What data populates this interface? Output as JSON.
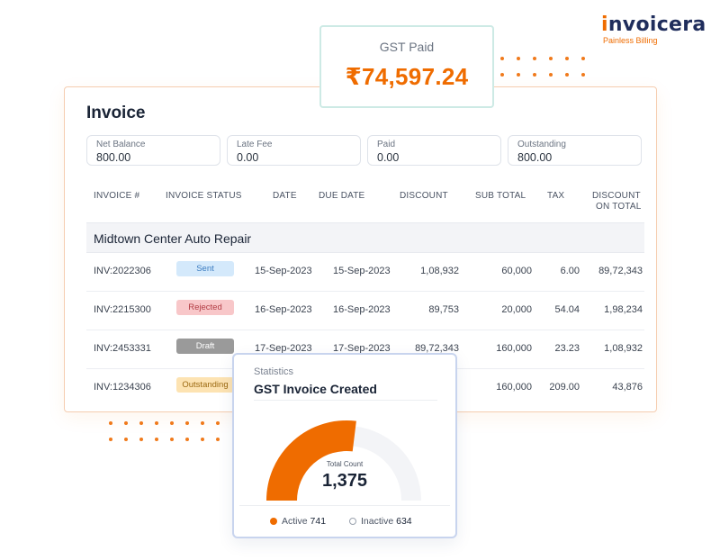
{
  "brand": {
    "name_prefix": "i",
    "name_rest": "nvoicera",
    "tagline": "Painless Billing",
    "accent_color": "#ef6c00",
    "dark_color": "#1f2d5c"
  },
  "gst_paid": {
    "label": "GST Paid",
    "value": "₹74,597.24"
  },
  "invoice": {
    "title": "Invoice",
    "summary": [
      {
        "label": "Net Balance",
        "value": "800.00"
      },
      {
        "label": "Late Fee",
        "value": "0.00"
      },
      {
        "label": "Paid",
        "value": "0.00"
      },
      {
        "label": "Outstanding",
        "value": "800.00"
      }
    ],
    "columns": [
      "INVOICE #",
      "INVOICE STATUS",
      "DATE",
      "DUE DATE",
      "DISCOUNT",
      "SUB TOTAL",
      "TAX",
      "DISCOUNT",
      "ON TOTAL"
    ],
    "group_name": "Midtown Center Auto Repair",
    "rows": [
      {
        "invoice": "INV:2022306",
        "status": "Sent",
        "date": "15-Sep-2023",
        "due": "15-Sep-2023",
        "discount": "1,08,932",
        "subtotal": "60,000",
        "tax": "6.00",
        "discount_total": "89,72,343"
      },
      {
        "invoice": "INV:2215300",
        "status": "Rejected",
        "date": "16-Sep-2023",
        "due": "16-Sep-2023",
        "discount": "89,753",
        "subtotal": "20,000",
        "tax": "54.04",
        "discount_total": "1,98,234"
      },
      {
        "invoice": "INV:2453331",
        "status": "Draft",
        "date": "17-Sep-2023",
        "due": "17-Sep-2023",
        "discount": "89,72,343",
        "subtotal": "160,000",
        "tax": "23.23",
        "discount_total": "1,08,932"
      },
      {
        "invoice": "INV:1234306",
        "status": "Outstanding",
        "date": "",
        "due": "",
        "discount": "",
        "subtotal": "160,000",
        "tax": "209.00",
        "discount_total": "43,876"
      }
    ]
  },
  "statistics": {
    "subtitle": "Statistics",
    "title": "GST Invoice Created",
    "gauge_label": "Total Count",
    "total": "1,375",
    "active_label": "Active",
    "active_value": "741",
    "inactive_label": "Inactive",
    "inactive_value": "634",
    "active_fraction": 0.539,
    "active_color": "#ef6c00",
    "track_color": "#f3f4f7"
  }
}
